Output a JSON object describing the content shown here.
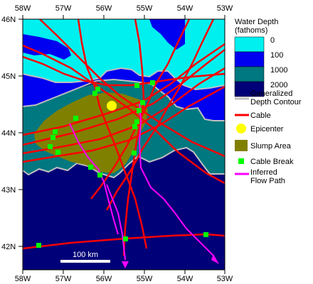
{
  "map": {
    "top_labels": [
      "58W",
      "57W",
      "56W",
      "55W",
      "54W",
      "53W"
    ],
    "bottom_labels": [
      "58W",
      "57W",
      "56W",
      "55W",
      "54W",
      "53W"
    ],
    "left_labels": [
      "46N",
      "45N",
      "44N",
      "43N",
      "42N"
    ],
    "scale_label": "100 km"
  },
  "legend": {
    "title": "Water Depth\n(fathoms)",
    "depth_classes": [
      {
        "label": "0",
        "color": "#00f0f0"
      },
      {
        "label": "100",
        "color": "#0000f0"
      },
      {
        "label": "1000",
        "color": "#007880"
      },
      {
        "label": "2000",
        "color": "#000078"
      }
    ],
    "contour_label": "Generalized\nDepth Contour",
    "contour_color": "#c0c0c0",
    "cable_label": "Cable",
    "cable_color": "#ff0000",
    "epicenter_label": "Epicenter",
    "epicenter_color": "#ffff00",
    "slump_label": "Slump Area",
    "slump_color": "#808000",
    "break_label": "Cable Break",
    "break_color": "#00ff00",
    "flow_label": "Inferred\nFlow Path",
    "flow_color": "#ff00ff"
  }
}
